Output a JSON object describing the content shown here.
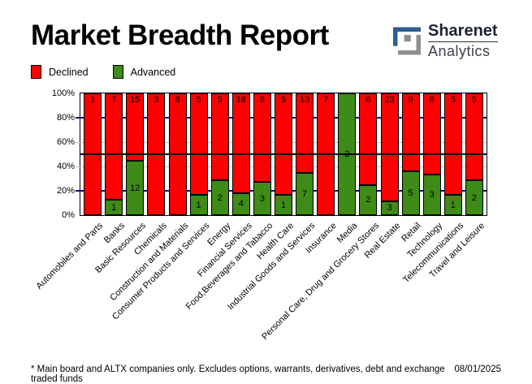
{
  "header": {
    "title": "Market Breadth Report",
    "logo": {
      "name": "Sharenet",
      "sub": "Analytics",
      "blue": "#2e5e8c",
      "gray": "#8e8e8e"
    }
  },
  "legend": {
    "items": [
      {
        "label": "Declined",
        "color": "#ff0000"
      },
      {
        "label": "Advanced",
        "color": "#3e8b17"
      }
    ]
  },
  "chart_data": {
    "type": "bar",
    "stacked_percent": true,
    "title": "Market Breadth Report",
    "categories": [
      "Automobiles and Parts",
      "Banks",
      "Basic Resources",
      "Chemicals",
      "Construction and Materials",
      "Consumer Products and Services",
      "Energy",
      "Financial Services",
      "Food,Beverages and Tabacco",
      "Health Care",
      "Industrial Goods and Services",
      "Insurance",
      "Media",
      "Personal Care, Drug and Grocery Stores",
      "Real Estate",
      "Retail",
      "Technology",
      "Telecommunications",
      "Travel and Leisure"
    ],
    "series": [
      {
        "name": "Declined",
        "color": "#ff0000",
        "values": [
          1,
          7,
          15,
          3,
          8,
          5,
          5,
          18,
          8,
          5,
          13,
          7,
          0,
          6,
          23,
          9,
          6,
          5,
          5
        ]
      },
      {
        "name": "Advanced",
        "color": "#3e8b17",
        "values": [
          0,
          1,
          12,
          0,
          0,
          1,
          2,
          4,
          3,
          1,
          7,
          0,
          2,
          2,
          3,
          5,
          3,
          1,
          2
        ]
      }
    ],
    "ylim": [
      0,
      100
    ],
    "y_tick_labels": [
      "100%",
      "80%",
      "60%",
      "40%",
      "20%",
      "0%"
    ],
    "gridlines": [
      {
        "percent": 80,
        "color": "#000080",
        "thickness": 1.5,
        "over_bars": false
      },
      {
        "percent": 60,
        "color": "#c0c0c0",
        "thickness": 1,
        "over_bars": false
      },
      {
        "percent": 50,
        "color": "#000000",
        "thickness": 2,
        "over_bars": true
      },
      {
        "percent": 40,
        "color": "#c0c0c0",
        "thickness": 1,
        "over_bars": false
      },
      {
        "percent": 20,
        "color": "#000080",
        "thickness": 1.5,
        "over_bars": false
      }
    ],
    "legend_position": "top-left"
  },
  "footer": {
    "note": "* Main board and ALTX companies only. Excludes options, warrants, derivatives, debt and exchange traded funds",
    "date": "08/01/2025"
  }
}
